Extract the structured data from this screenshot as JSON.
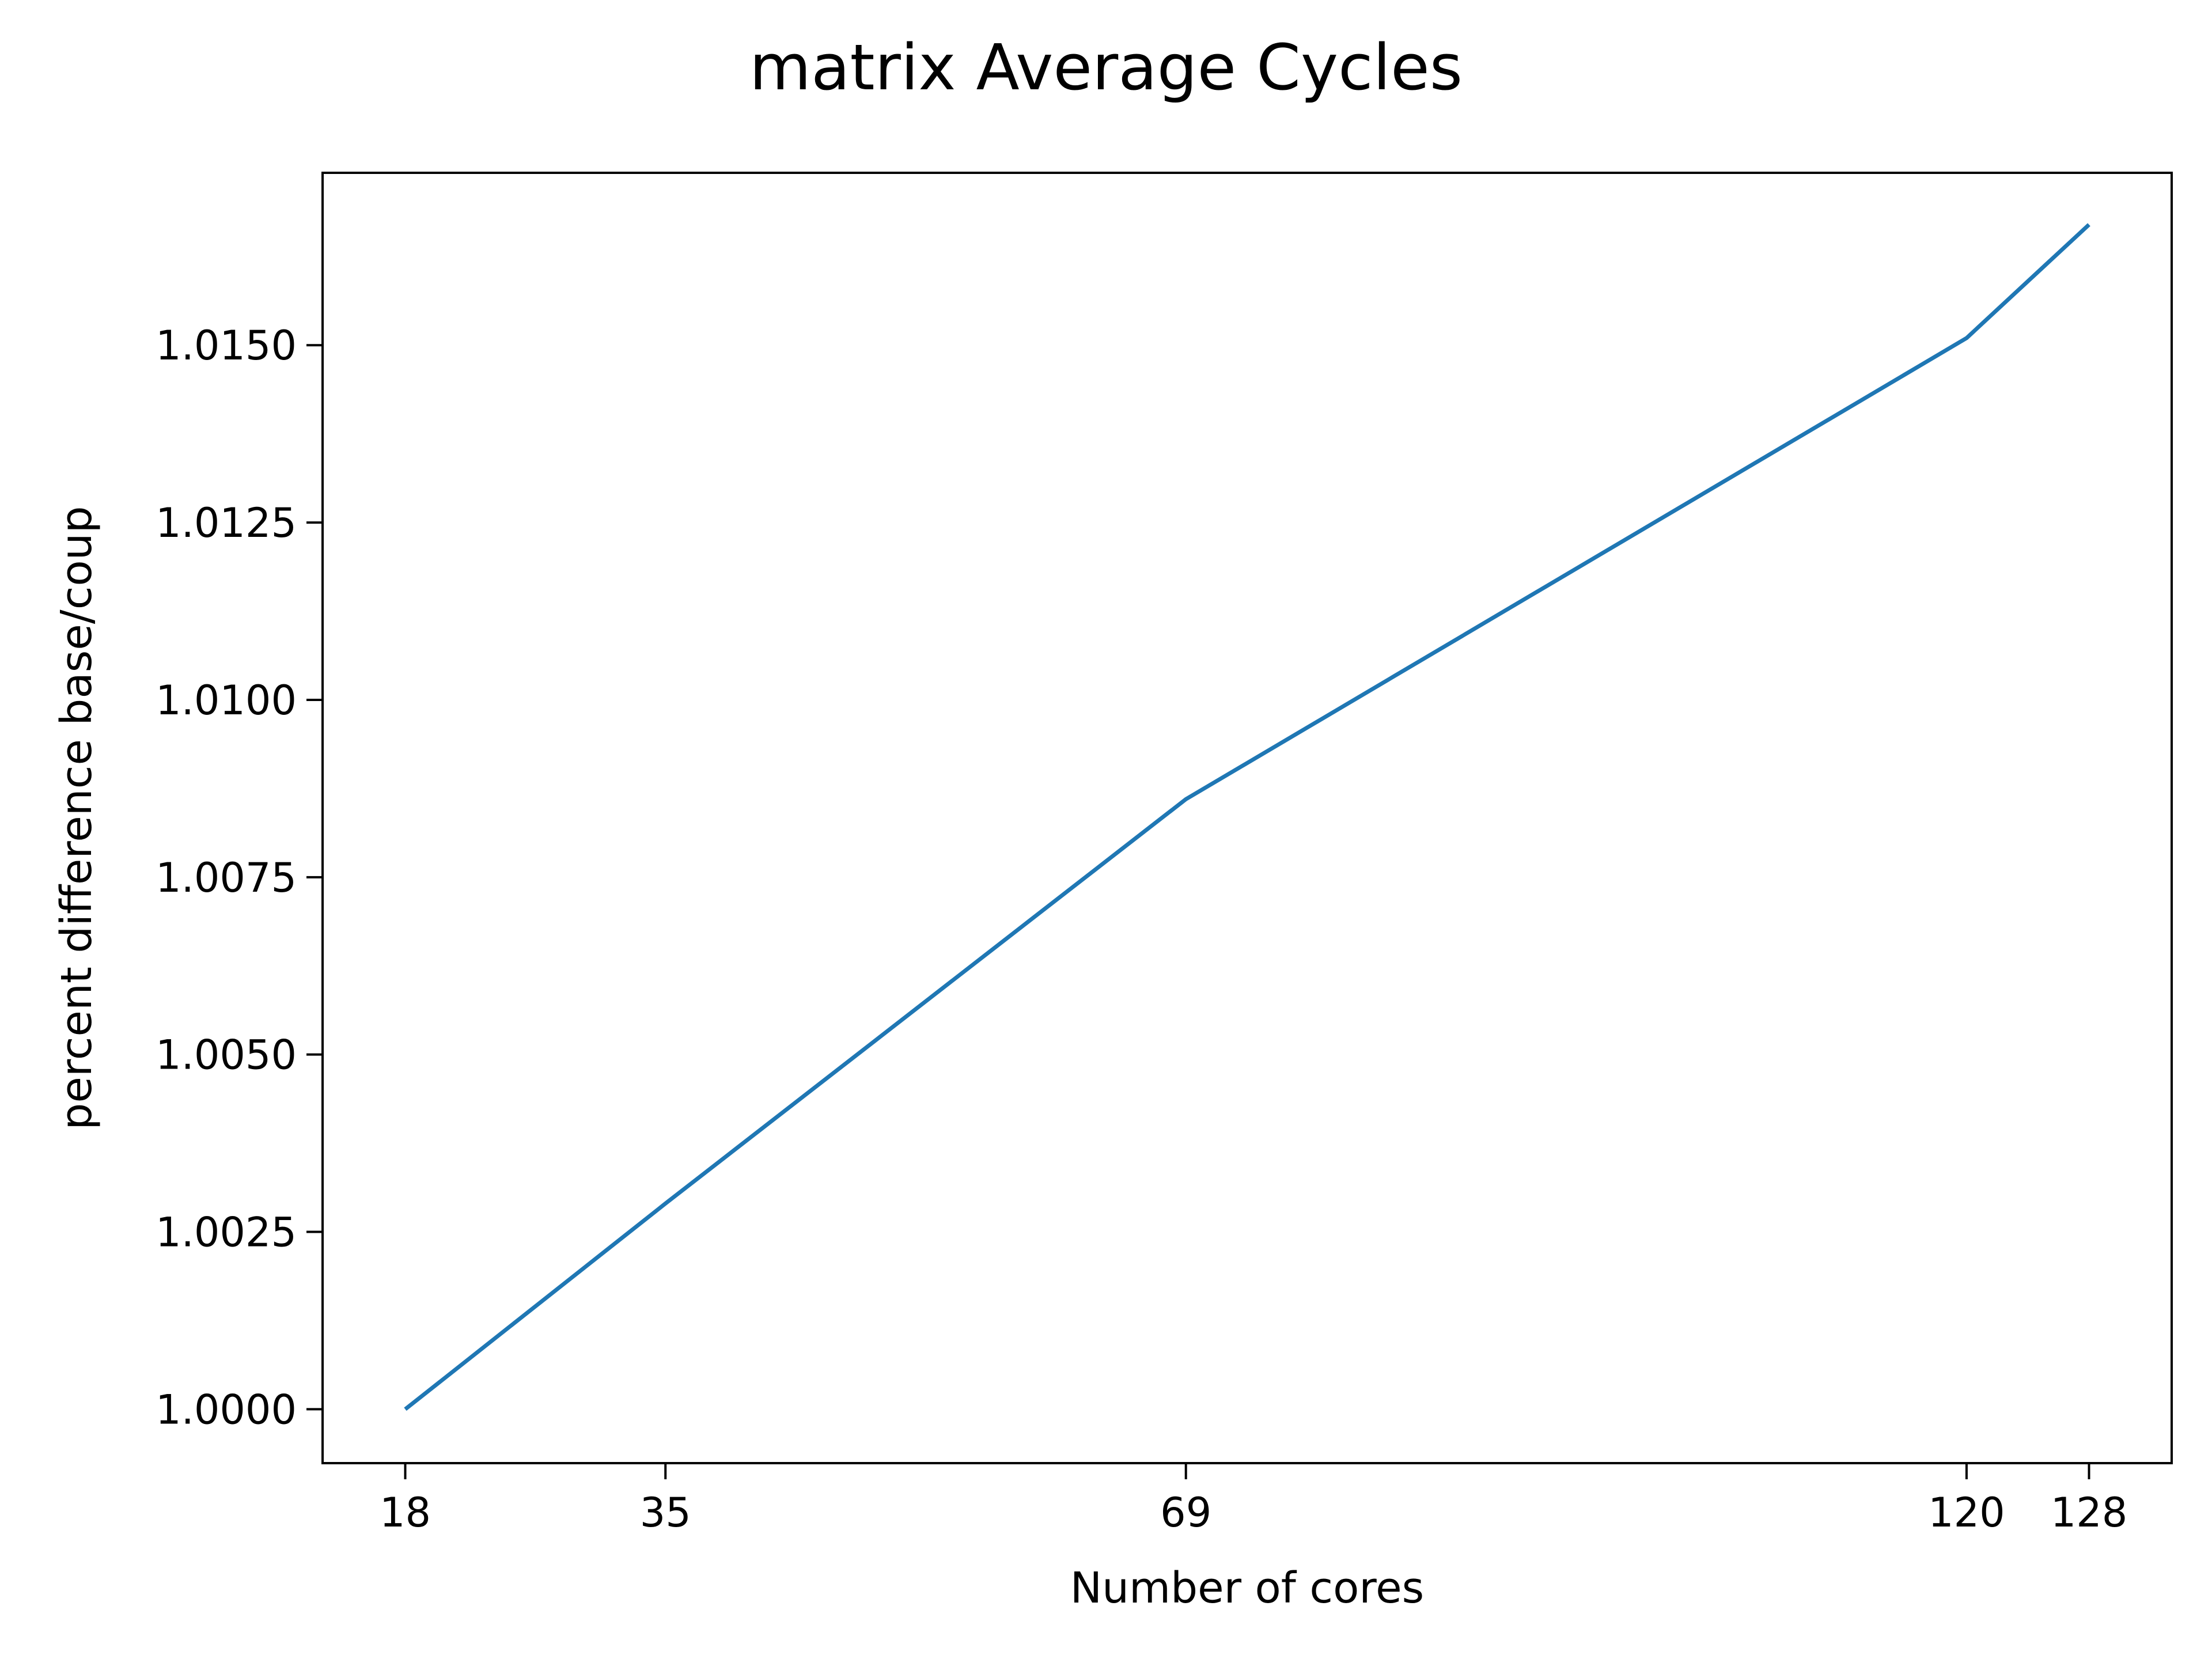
{
  "chart_data": {
    "type": "line",
    "title": "matrix Average Cycles",
    "xlabel": "Number of cores",
    "ylabel": "percent difference base/coup",
    "x": [
      18,
      35,
      69,
      120,
      128
    ],
    "xticks": [
      18,
      35,
      69,
      120,
      128
    ],
    "xlim": [
      12.6,
      133.4
    ],
    "yticks": [
      1.0,
      1.0025,
      1.005,
      1.0075,
      1.01,
      1.0125,
      1.015
    ],
    "ytick_labels": [
      "1.0000",
      "1.0025",
      "1.0050",
      "1.0075",
      "1.0100",
      "1.0125",
      "1.0150"
    ],
    "ylim": [
      0.99924,
      1.01743
    ],
    "grid": false,
    "series": [
      {
        "values": [
          1.0,
          1.0029,
          1.0086,
          1.0151,
          1.0167
        ],
        "color": "#1f77b4"
      }
    ]
  }
}
